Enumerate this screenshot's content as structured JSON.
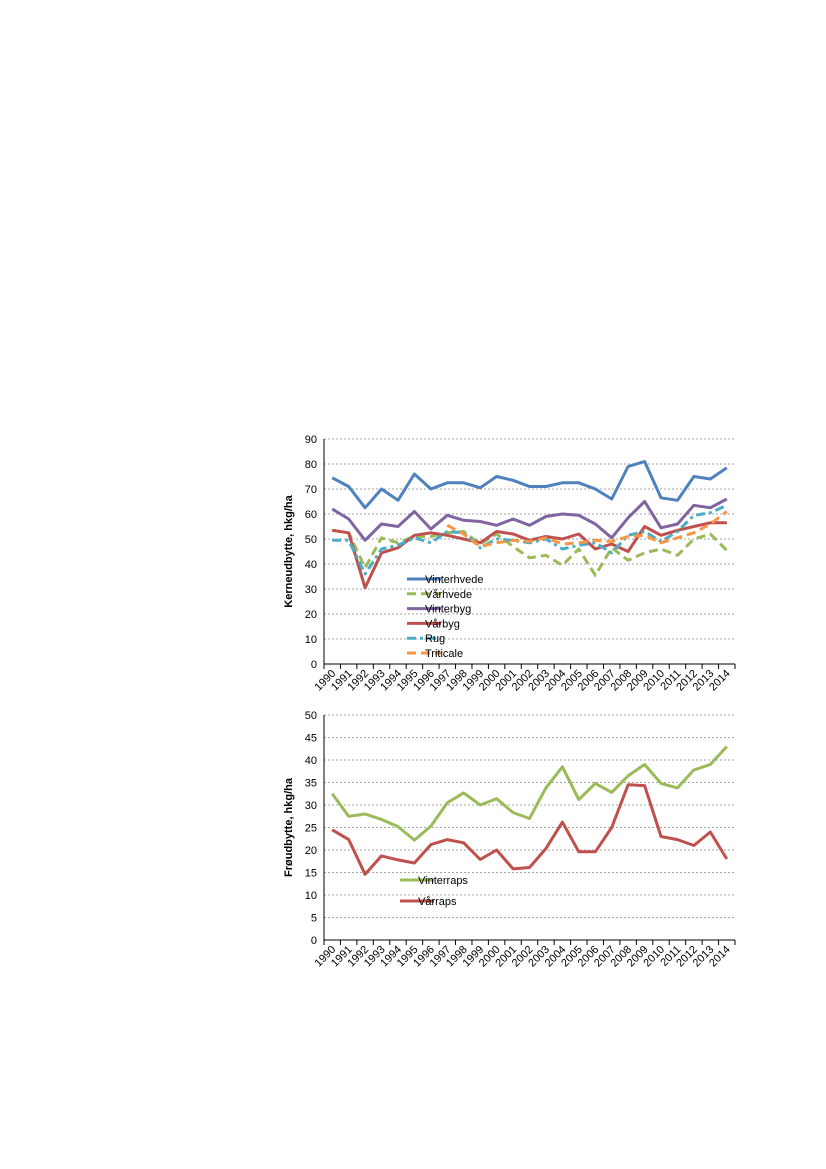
{
  "chart_data": [
    {
      "type": "line",
      "title": "",
      "xlabel": "",
      "ylabel": "Kerneudbytte, hkg/ha",
      "ylim": [
        0,
        90
      ],
      "yticks": [
        0,
        10,
        20,
        30,
        40,
        50,
        60,
        70,
        80,
        90
      ],
      "grid": true,
      "legend": "bottom-left",
      "x": [
        "1990",
        "1991",
        "1992",
        "1993",
        "1994",
        "1995",
        "1996",
        "1997",
        "1998",
        "1999",
        "2000",
        "2001",
        "2002",
        "2003",
        "2004",
        "2005",
        "2006",
        "2007",
        "2008",
        "2009",
        "2010",
        "2011",
        "2012",
        "2013",
        "2014"
      ],
      "series": [
        {
          "name": "Vinterhvede",
          "color": "#4F81BD",
          "dash": "solid",
          "values": [
            74.5,
            71,
            62.5,
            70,
            65.5,
            76,
            70,
            72.5,
            72.5,
            70.5,
            75,
            73.5,
            71,
            71,
            72.5,
            72.5,
            70,
            66,
            79,
            81,
            66.5,
            65.5,
            75,
            74,
            78.5
          ]
        },
        {
          "name": "Vårhvede",
          "color": "#9BBB59",
          "dash": "dashed",
          "values": [
            53.5,
            52.5,
            38.5,
            50.5,
            48.5,
            51,
            51,
            52.5,
            53,
            48,
            52,
            47,
            42.5,
            43.5,
            39.5,
            46,
            35.5,
            46.5,
            41.5,
            44.5,
            46,
            43.5,
            50,
            52,
            45.5
          ]
        },
        {
          "name": "Vinterbyg",
          "color": "#8064A2",
          "dash": "solid",
          "values": [
            62,
            58,
            49.5,
            56,
            55,
            61,
            54,
            59.5,
            57.5,
            57,
            55.5,
            58,
            55.5,
            59,
            60,
            59.5,
            56,
            50.5,
            58.5,
            65,
            54.5,
            56,
            63.5,
            62.5,
            66
          ]
        },
        {
          "name": "Vårbyg",
          "color": "#C0504D",
          "dash": "solid",
          "values": [
            53.5,
            52.5,
            30.5,
            44.5,
            46.5,
            51.5,
            52.5,
            51.5,
            50,
            48.5,
            53,
            52,
            49.5,
            51,
            50,
            52,
            46,
            48,
            45,
            55,
            51.5,
            53.5,
            55,
            56.5,
            56.5
          ]
        },
        {
          "name": "Rug",
          "color": "#4BACC6",
          "dash": "dashdot",
          "values": [
            49.5,
            49.5,
            36,
            46,
            47.5,
            50.5,
            48.5,
            53,
            52.5,
            46.5,
            50,
            49.5,
            48.5,
            50,
            46,
            47.5,
            48.5,
            44.5,
            51.5,
            53,
            49,
            53,
            59.5,
            60.5,
            63.5
          ]
        },
        {
          "name": "Triticale",
          "color": "#F79646",
          "dash": "dashed",
          "values": [
            null,
            null,
            null,
            null,
            null,
            null,
            null,
            55.5,
            52,
            47,
            48.5,
            49.5,
            49,
            50.5,
            48,
            48.5,
            49.5,
            49,
            51,
            51.5,
            48.5,
            50.5,
            52.5,
            56,
            61
          ]
        }
      ]
    },
    {
      "type": "line",
      "title": "",
      "xlabel": "",
      "ylabel": "Frøudbytte, hkg/ha",
      "ylim": [
        0,
        50
      ],
      "yticks": [
        0,
        5,
        10,
        15,
        20,
        25,
        30,
        35,
        40,
        45,
        50
      ],
      "grid": true,
      "legend": "bottom-left",
      "x": [
        "1990",
        "1991",
        "1992",
        "1993",
        "1994",
        "1995",
        "1996",
        "1997",
        "1998",
        "1999",
        "2000",
        "2001",
        "2002",
        "2003",
        "2004",
        "2005",
        "2006",
        "2007",
        "2008",
        "2009",
        "2010",
        "2011",
        "2012",
        "2013",
        "2014"
      ],
      "series": [
        {
          "name": "Vinterraps",
          "color": "#9BBB59",
          "dash": "solid",
          "values": [
            32.5,
            27.5,
            28,
            26.8,
            25.2,
            22.2,
            25.3,
            30.5,
            32.7,
            30,
            31.4,
            28.3,
            27,
            33.8,
            38.5,
            31.2,
            34.8,
            32.8,
            36.5,
            39,
            34.8,
            33.8,
            37.8,
            39,
            43
          ]
        },
        {
          "name": "Vårraps",
          "color": "#C0504D",
          "dash": "solid",
          "values": [
            24.5,
            22.3,
            14.6,
            18.7,
            17.8,
            17.1,
            21.2,
            22.3,
            21.6,
            17.9,
            20,
            15.8,
            16.1,
            20.3,
            26.2,
            19.6,
            19.6,
            25,
            34.5,
            34.3,
            23,
            22.3,
            21,
            24,
            18
          ]
        }
      ]
    }
  ]
}
